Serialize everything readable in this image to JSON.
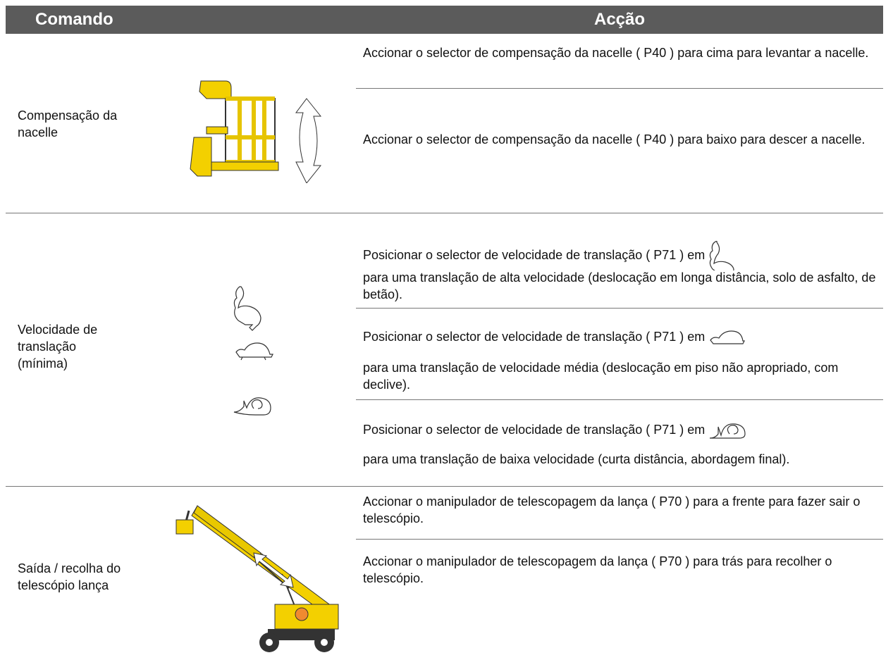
{
  "header": {
    "command": "Comando",
    "action": "Acção"
  },
  "rows": [
    {
      "command": "Compensação da nacelle",
      "actions": [
        {
          "text": "Accionar o selector de compensação da nacelle ( P40 ) para cima para levantar a nacelle."
        },
        {
          "text": "Accionar o selector de compensação da nacelle ( P40 ) para baixo para descer a nacelle."
        }
      ]
    },
    {
      "command": "Velocidade de translação (mínima)",
      "actions": [
        {
          "lead": "Posicionar o selector de velocidade de translação ( P71 ) em",
          "text": "para uma translação de alta velocidade (deslocação em longa distância, solo de asfalto, de betão)."
        },
        {
          "lead": "Posicionar o selector de velocidade de translação ( P71 ) em",
          "text": "para uma translação de velocidade média (deslocação em piso não apropriado, com declive)."
        },
        {
          "lead": "Posicionar o selector de velocidade de translação ( P71 ) em",
          "text": "para uma translação de baixa velocidade (curta distância, abordagem final)."
        }
      ]
    },
    {
      "command": "Saída / recolha do telescópio lança",
      "actions": [
        {
          "text": "Accionar o manipulador de telescopagem da lança ( P70 ) para a frente para fazer sair o telescópio."
        },
        {
          "text": "Accionar o manipulador de telescopagem da lança ( P70 ) para trás para recolher o telescópio."
        }
      ]
    }
  ]
}
